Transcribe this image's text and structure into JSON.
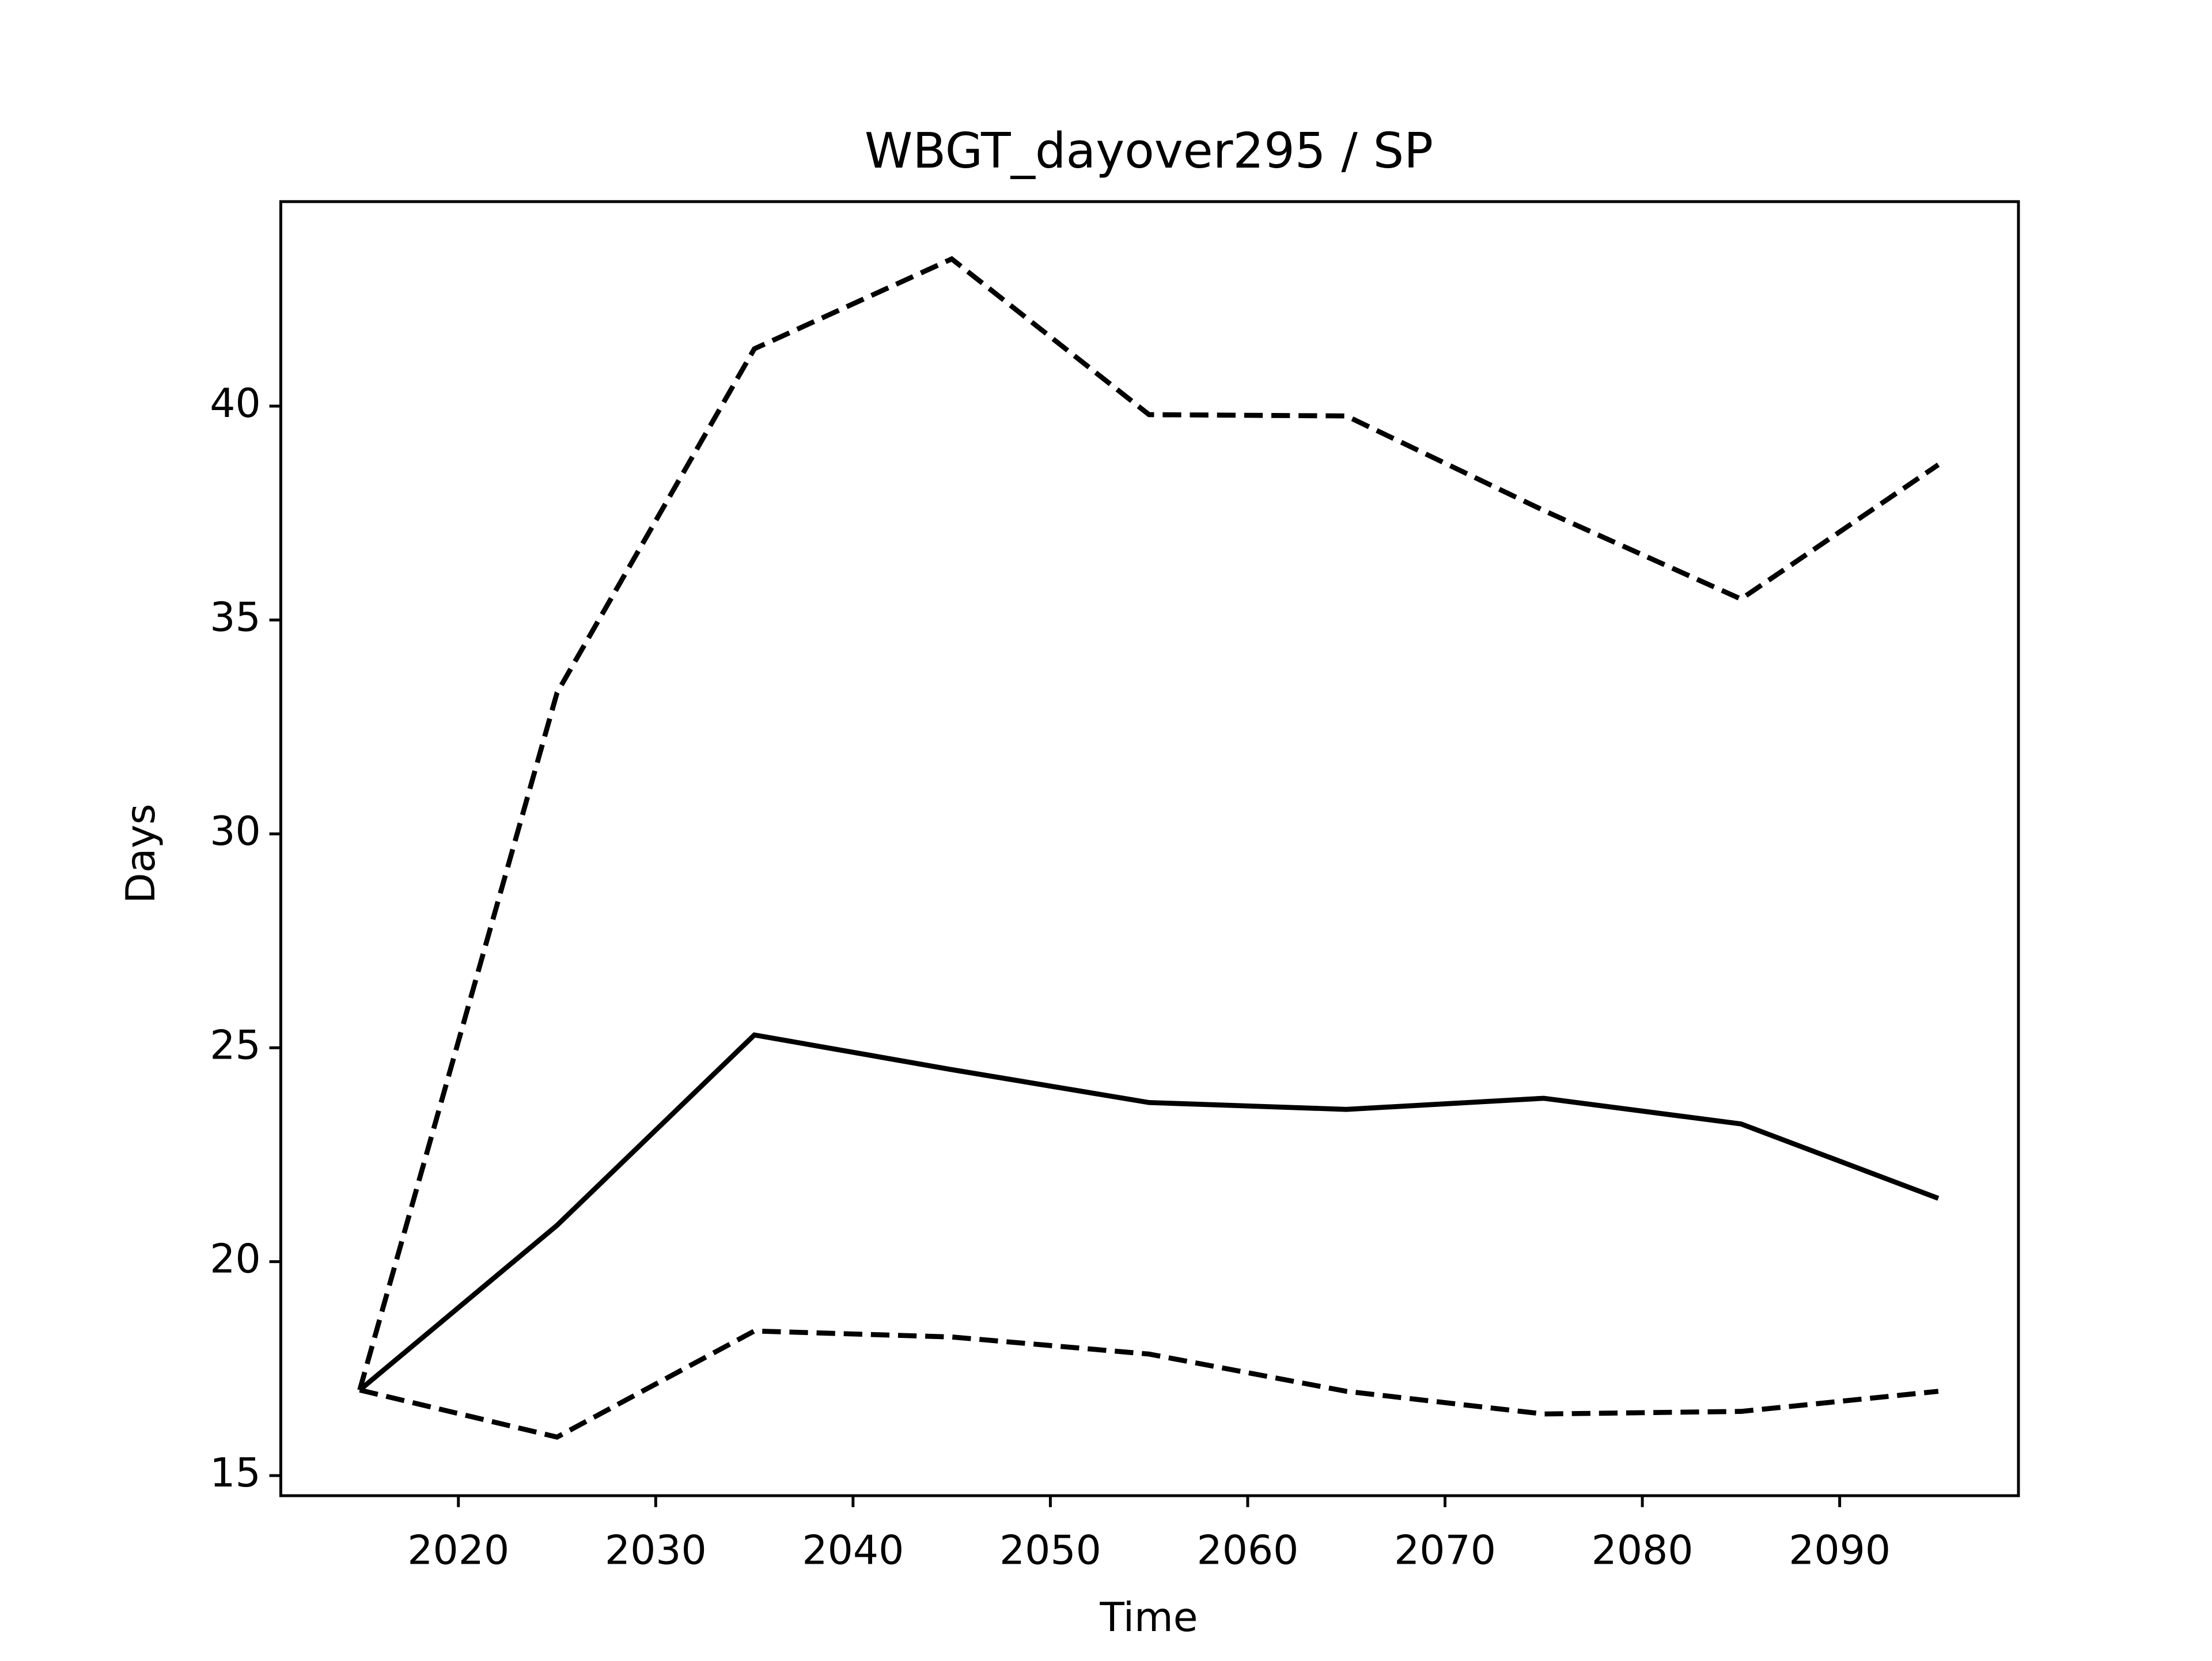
{
  "chart_data": {
    "type": "line",
    "title": "WBGT_dayover295 / SP",
    "x_label": "Time",
    "y_label": "Days",
    "x": [
      2015,
      2025,
      2035,
      2045,
      2055,
      2065,
      2075,
      2085,
      2095
    ],
    "series": [
      {
        "color": "#000000",
        "dashed": false,
        "values": [
          17.0,
          20.85,
          25.3,
          24.49,
          23.72,
          23.56,
          23.82,
          23.22,
          21.48
        ]
      },
      {
        "color": "#000000",
        "dashed": true,
        "values": [
          17.0,
          33.3,
          41.34,
          43.44,
          39.8,
          39.77,
          37.56,
          35.49,
          38.63
        ]
      },
      {
        "color": "#000000",
        "dashed": true,
        "values": [
          17.0,
          15.9,
          18.38,
          18.24,
          17.84,
          16.97,
          16.44,
          16.5,
          16.97
        ]
      }
    ],
    "xlim": [
      2011,
      2099.06
    ],
    "xticks": [
      2020,
      2030,
      2040,
      2050,
      2060,
      2070,
      2080,
      2090
    ],
    "ylim": [
      14.53,
      44.78
    ],
    "yticks": [
      15,
      20,
      25,
      30,
      35,
      40
    ],
    "grid": false
  }
}
